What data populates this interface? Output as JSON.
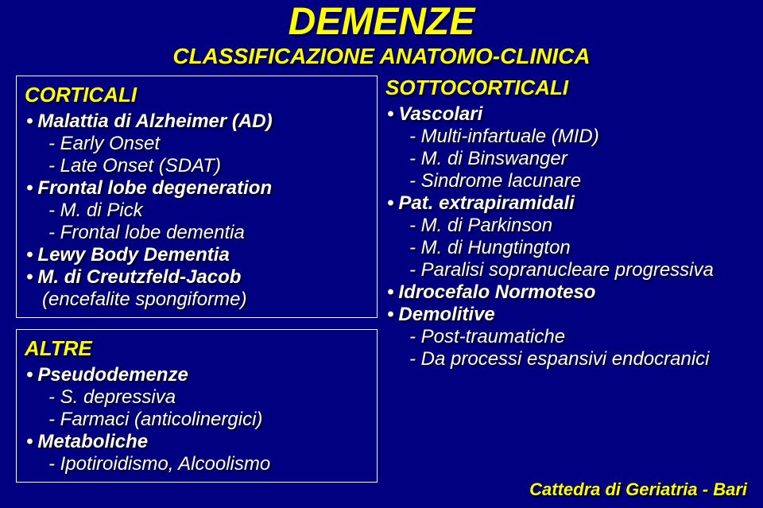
{
  "title": {
    "text": "DEMENZE",
    "fontsize": 48
  },
  "subtitle": {
    "text": "CLASSIFICAZIONE ANATOMO-CLINICA",
    "fontsize": 28
  },
  "body_fontsize": 24,
  "sect_fontsize": 26,
  "left": {
    "box1": {
      "title": "CORTICALI",
      "items": [
        {
          "label": "Malattia di Alzheimer (AD)",
          "subs": [
            "- Early Onset",
            "- Late Onset (SDAT)"
          ]
        },
        {
          "label": "Frontal lobe degeneration",
          "subs": [
            "- M. di Pick",
            "- Frontal lobe dementia"
          ]
        },
        {
          "label": "Lewy Body Dementia",
          "subs": []
        },
        {
          "label": "M. di Creutzfeld-Jacob",
          "subs_noindent": [
            "(encefalite spongiforme)"
          ]
        }
      ]
    },
    "box2": {
      "title": "ALTRE",
      "items": [
        {
          "label": "Pseudodemenze",
          "subs": [
            "- S. depressiva",
            "- Farmaci (anticolinergici)"
          ]
        },
        {
          "label": "Metaboliche",
          "subs": [
            "- Ipotiroidismo, Alcoolismo"
          ]
        }
      ]
    }
  },
  "right": {
    "title": "SOTTOCORTICALI",
    "items": [
      {
        "label": "Vascolari",
        "bold": true,
        "subs": [
          "- Multi-infartuale (MID)",
          "- M. di Binswanger",
          "- Sindrome lacunare"
        ]
      },
      {
        "label": "Pat. extrapiramidali",
        "bold": true,
        "subs": [
          "- M. di Parkinson",
          "- M. di Hungtington",
          "- Paralisi sopranucleare progressiva"
        ]
      },
      {
        "label": "Idrocefalo Normoteso",
        "bold": true,
        "subs": []
      },
      {
        "label": "Demolitive",
        "bold": true,
        "subs": [
          "- Post-traumatiche",
          "- Da processi espansivi endocranici"
        ]
      }
    ]
  },
  "footer": "Cattedra di Geriatria - Bari",
  "colors": {
    "bg": "#000080",
    "text": "#ffffff",
    "accent": "#ffff00"
  }
}
